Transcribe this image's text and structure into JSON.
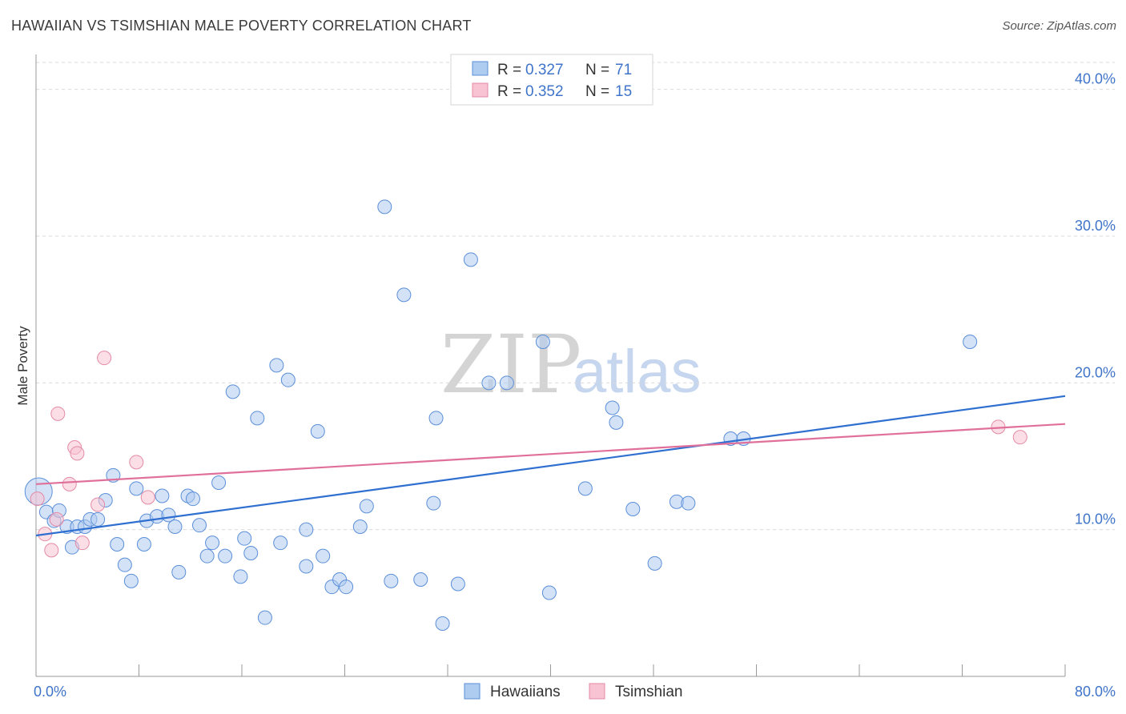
{
  "title": "HAWAIIAN VS TSIMSHIAN MALE POVERTY CORRELATION CHART",
  "source": "Source: ZipAtlas.com",
  "watermark": {
    "zip": "ZIP",
    "atlas": "atlas"
  },
  "colors": {
    "hawaiians_fill": "#aecbf0",
    "hawaiians_stroke": "#5b8fd8",
    "hawaiians_line": "#2f6fd0",
    "tsimshian_fill": "#f8c3d2",
    "tsimshian_stroke": "#e48aa6",
    "tsimshian_line": "#e0709a",
    "axis_text": "#3f74c9",
    "grid": "#d9d9d9"
  },
  "legend_top": {
    "rows": [
      {
        "r_label": "R = ",
        "r_value": "0.327",
        "n_label": "N = ",
        "n_value": "71"
      },
      {
        "r_label": "R = ",
        "r_value": "0.352",
        "n_label": "N = ",
        "n_value": "15"
      }
    ]
  },
  "legend_bottom": {
    "items": [
      "Hawaiians",
      "Tsimshian"
    ]
  },
  "chart_data": {
    "type": "scatter",
    "title": "HAWAIIAN VS TSIMSHIAN MALE POVERTY CORRELATION CHART",
    "xlabel": "",
    "ylabel": "Male Poverty",
    "xlim": [
      0,
      80
    ],
    "ylim": [
      0,
      42
    ],
    "x_ticks": [
      0,
      8,
      16,
      24,
      32,
      40,
      48,
      56,
      64,
      72,
      80
    ],
    "x_tick_labels": {
      "0": "0.0%",
      "80": "80.0%"
    },
    "y_ticks": [
      10,
      20,
      30,
      40
    ],
    "y_tick_labels": [
      "10.0%",
      "20.0%",
      "30.0%",
      "40.0%"
    ],
    "grid": "horizontal dashed",
    "legend_position": "top-center",
    "series": [
      {
        "name": "Hawaiians",
        "R": 0.327,
        "N": 71,
        "trend": {
          "x": [
            0,
            80
          ],
          "y": [
            9.6,
            19.1
          ]
        },
        "points": [
          {
            "x": 0.2,
            "y": 12.6,
            "big": true
          },
          {
            "x": 0.8,
            "y": 11.2
          },
          {
            "x": 1.4,
            "y": 10.6
          },
          {
            "x": 1.8,
            "y": 11.3
          },
          {
            "x": 2.4,
            "y": 10.2
          },
          {
            "x": 2.8,
            "y": 8.8
          },
          {
            "x": 3.2,
            "y": 10.2
          },
          {
            "x": 3.8,
            "y": 10.2
          },
          {
            "x": 4.2,
            "y": 10.7
          },
          {
            "x": 4.8,
            "y": 10.7
          },
          {
            "x": 5.4,
            "y": 12.0
          },
          {
            "x": 6.0,
            "y": 13.7
          },
          {
            "x": 6.3,
            "y": 9.0
          },
          {
            "x": 6.9,
            "y": 7.6
          },
          {
            "x": 7.4,
            "y": 6.5
          },
          {
            "x": 7.8,
            "y": 12.8
          },
          {
            "x": 8.4,
            "y": 9.0
          },
          {
            "x": 8.6,
            "y": 10.6
          },
          {
            "x": 9.4,
            "y": 10.9
          },
          {
            "x": 9.8,
            "y": 12.3
          },
          {
            "x": 10.3,
            "y": 11.0
          },
          {
            "x": 10.8,
            "y": 10.2
          },
          {
            "x": 11.1,
            "y": 7.1
          },
          {
            "x": 11.8,
            "y": 12.3
          },
          {
            "x": 12.2,
            "y": 12.1
          },
          {
            "x": 12.7,
            "y": 10.3
          },
          {
            "x": 13.3,
            "y": 8.2
          },
          {
            "x": 13.7,
            "y": 9.1
          },
          {
            "x": 14.2,
            "y": 13.2
          },
          {
            "x": 14.7,
            "y": 8.2
          },
          {
            "x": 15.3,
            "y": 19.4
          },
          {
            "x": 15.9,
            "y": 6.8
          },
          {
            "x": 16.2,
            "y": 9.4
          },
          {
            "x": 16.7,
            "y": 8.4
          },
          {
            "x": 17.2,
            "y": 17.6
          },
          {
            "x": 17.8,
            "y": 4.0
          },
          {
            "x": 18.7,
            "y": 21.2
          },
          {
            "x": 19.0,
            "y": 9.1
          },
          {
            "x": 19.6,
            "y": 20.2
          },
          {
            "x": 21.0,
            "y": 10.0
          },
          {
            "x": 21.0,
            "y": 7.5
          },
          {
            "x": 21.9,
            "y": 16.7
          },
          {
            "x": 22.3,
            "y": 8.2
          },
          {
            "x": 23.0,
            "y": 6.1
          },
          {
            "x": 23.6,
            "y": 6.6
          },
          {
            "x": 24.1,
            "y": 6.1
          },
          {
            "x": 25.2,
            "y": 10.2
          },
          {
            "x": 25.7,
            "y": 11.6
          },
          {
            "x": 27.1,
            "y": 32.0
          },
          {
            "x": 27.6,
            "y": 6.5
          },
          {
            "x": 28.6,
            "y": 26.0
          },
          {
            "x": 29.9,
            "y": 6.6
          },
          {
            "x": 30.9,
            "y": 11.8
          },
          {
            "x": 31.1,
            "y": 17.6
          },
          {
            "x": 31.6,
            "y": 3.6
          },
          {
            "x": 32.8,
            "y": 6.3
          },
          {
            "x": 33.8,
            "y": 28.4
          },
          {
            "x": 35.2,
            "y": 20.0
          },
          {
            "x": 36.6,
            "y": 20.0
          },
          {
            "x": 39.4,
            "y": 22.8
          },
          {
            "x": 39.9,
            "y": 5.7
          },
          {
            "x": 42.7,
            "y": 12.8
          },
          {
            "x": 44.8,
            "y": 18.3
          },
          {
            "x": 45.1,
            "y": 17.3
          },
          {
            "x": 46.4,
            "y": 11.4
          },
          {
            "x": 48.1,
            "y": 7.7
          },
          {
            "x": 49.8,
            "y": 11.9
          },
          {
            "x": 50.7,
            "y": 11.8
          },
          {
            "x": 54.0,
            "y": 16.2
          },
          {
            "x": 55.0,
            "y": 16.2
          },
          {
            "x": 72.6,
            "y": 22.8
          }
        ]
      },
      {
        "name": "Tsimshian",
        "R": 0.352,
        "N": 15,
        "trend": {
          "x": [
            0,
            80
          ],
          "y": [
            13.1,
            17.2
          ]
        },
        "points": [
          {
            "x": 0.1,
            "y": 12.1
          },
          {
            "x": 0.7,
            "y": 9.7
          },
          {
            "x": 1.2,
            "y": 8.6
          },
          {
            "x": 1.6,
            "y": 10.7
          },
          {
            "x": 1.7,
            "y": 17.9
          },
          {
            "x": 2.6,
            "y": 13.1
          },
          {
            "x": 3.0,
            "y": 15.6
          },
          {
            "x": 3.2,
            "y": 15.2
          },
          {
            "x": 3.6,
            "y": 9.1
          },
          {
            "x": 4.8,
            "y": 11.7
          },
          {
            "x": 5.3,
            "y": 21.7
          },
          {
            "x": 7.8,
            "y": 14.6
          },
          {
            "x": 8.7,
            "y": 12.2
          },
          {
            "x": 74.8,
            "y": 17.0
          },
          {
            "x": 76.5,
            "y": 16.3
          }
        ]
      }
    ]
  }
}
